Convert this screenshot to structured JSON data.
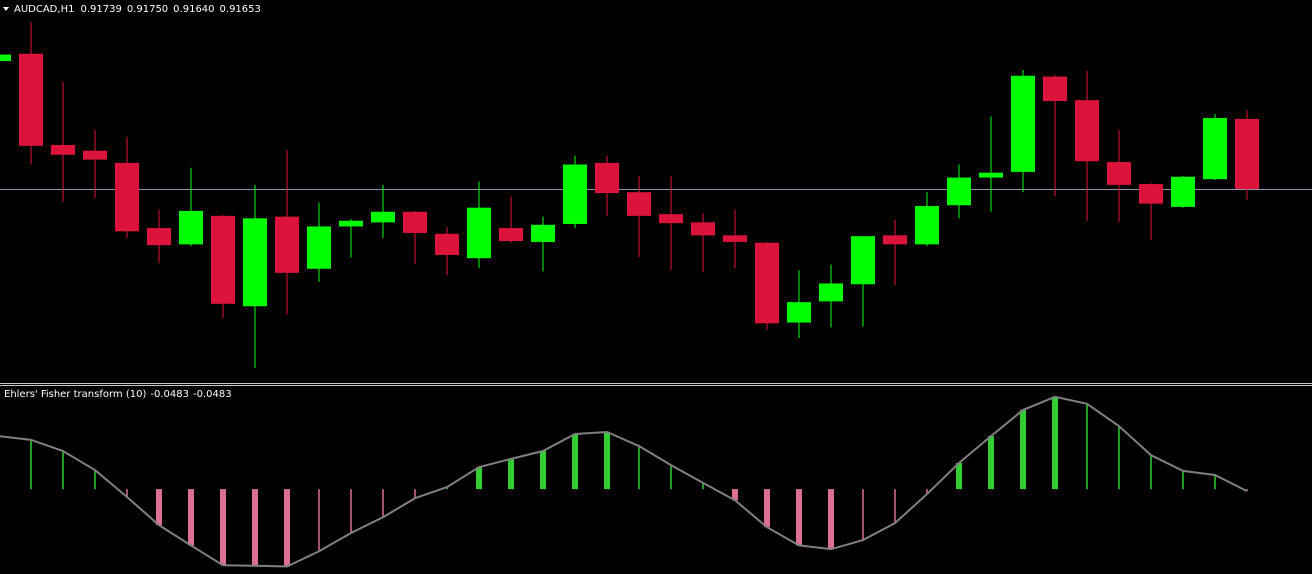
{
  "chart_data": [
    {
      "type": "candlestick",
      "title": "AUDCAD,H1",
      "header_values": [
        "0.91739",
        "0.91750",
        "0.91640",
        "0.91653"
      ],
      "ylim": [
        0.91416,
        0.91885
      ],
      "up_color": "#00ff00",
      "down_color": "#dc143c",
      "price_line": true,
      "price_line_color": "#8c96aa",
      "open": [
        0.9181,
        0.91819,
        0.91707,
        0.917,
        0.91685,
        0.91605,
        0.91585,
        0.9162,
        0.91509,
        0.91619,
        0.91555,
        0.91607,
        0.91612,
        0.91625,
        0.91598,
        0.91568,
        0.91605,
        0.91588,
        0.9161,
        0.91685,
        0.91649,
        0.91622,
        0.91612,
        0.91596,
        0.91587,
        0.91489,
        0.91515,
        0.91536,
        0.91596,
        0.91585,
        0.91633,
        0.91667,
        0.91674,
        0.91791,
        0.91762,
        0.91686,
        0.91659,
        0.91631,
        0.91665,
        0.91739
      ],
      "high": [
        0.91819,
        0.91858,
        0.91785,
        0.91726,
        0.91717,
        0.91628,
        0.91679,
        0.91621,
        0.91658,
        0.91701,
        0.91636,
        0.91616,
        0.91658,
        0.91626,
        0.91606,
        0.91662,
        0.91644,
        0.91619,
        0.91694,
        0.91694,
        0.91669,
        0.91669,
        0.91623,
        0.91628,
        0.91588,
        0.91553,
        0.9156,
        0.91595,
        0.91615,
        0.91649,
        0.91683,
        0.91742,
        0.91799,
        0.91793,
        0.91798,
        0.91726,
        0.9166,
        0.91669,
        0.91745,
        0.9175
      ],
      "low": [
        0.91809,
        0.91683,
        0.91637,
        0.91642,
        0.91593,
        0.91562,
        0.91583,
        0.91494,
        0.91433,
        0.91499,
        0.91539,
        0.91569,
        0.91593,
        0.91561,
        0.91547,
        0.91556,
        0.91587,
        0.91552,
        0.91605,
        0.9162,
        0.91569,
        0.91553,
        0.91551,
        0.91556,
        0.9148,
        0.9147,
        0.91483,
        0.91484,
        0.91535,
        0.91583,
        0.91617,
        0.91625,
        0.91649,
        0.91644,
        0.91614,
        0.91612,
        0.9159,
        0.9163,
        0.91664,
        0.9164
      ],
      "close": [
        0.91818,
        0.91706,
        0.91695,
        0.91689,
        0.91601,
        0.91584,
        0.91626,
        0.91512,
        0.91617,
        0.9155,
        0.91607,
        0.91614,
        0.91625,
        0.91599,
        0.91572,
        0.9163,
        0.91589,
        0.91609,
        0.91683,
        0.91648,
        0.9162,
        0.91611,
        0.91596,
        0.91588,
        0.91488,
        0.91514,
        0.91537,
        0.91595,
        0.91585,
        0.91632,
        0.91667,
        0.91673,
        0.91792,
        0.91761,
        0.91687,
        0.91658,
        0.91635,
        0.91668,
        0.9174,
        0.91653
      ]
    },
    {
      "type": "bar",
      "title": "Ehlers' Fisher transform (10)",
      "header_values": [
        "-0.0483",
        "-0.0483"
      ],
      "ylim": [
        -2.05,
        2.49
      ],
      "up_color": "#32cd32",
      "down_color": "#db7093",
      "line_color": "#808080",
      "values": [
        1.28,
        1.19,
        0.92,
        0.46,
        -0.19,
        -0.87,
        -1.36,
        -1.84,
        -1.85,
        -1.87,
        -1.5,
        -1.06,
        -0.68,
        -0.22,
        0.05,
        0.53,
        0.73,
        0.92,
        1.33,
        1.38,
        1.04,
        0.58,
        0.15,
        -0.27,
        -0.92,
        -1.36,
        -1.45,
        -1.23,
        -0.82,
        -0.12,
        0.63,
        1.28,
        1.91,
        2.23,
        2.06,
        1.52,
        0.82,
        0.44,
        0.34,
        -0.0483
      ]
    }
  ]
}
